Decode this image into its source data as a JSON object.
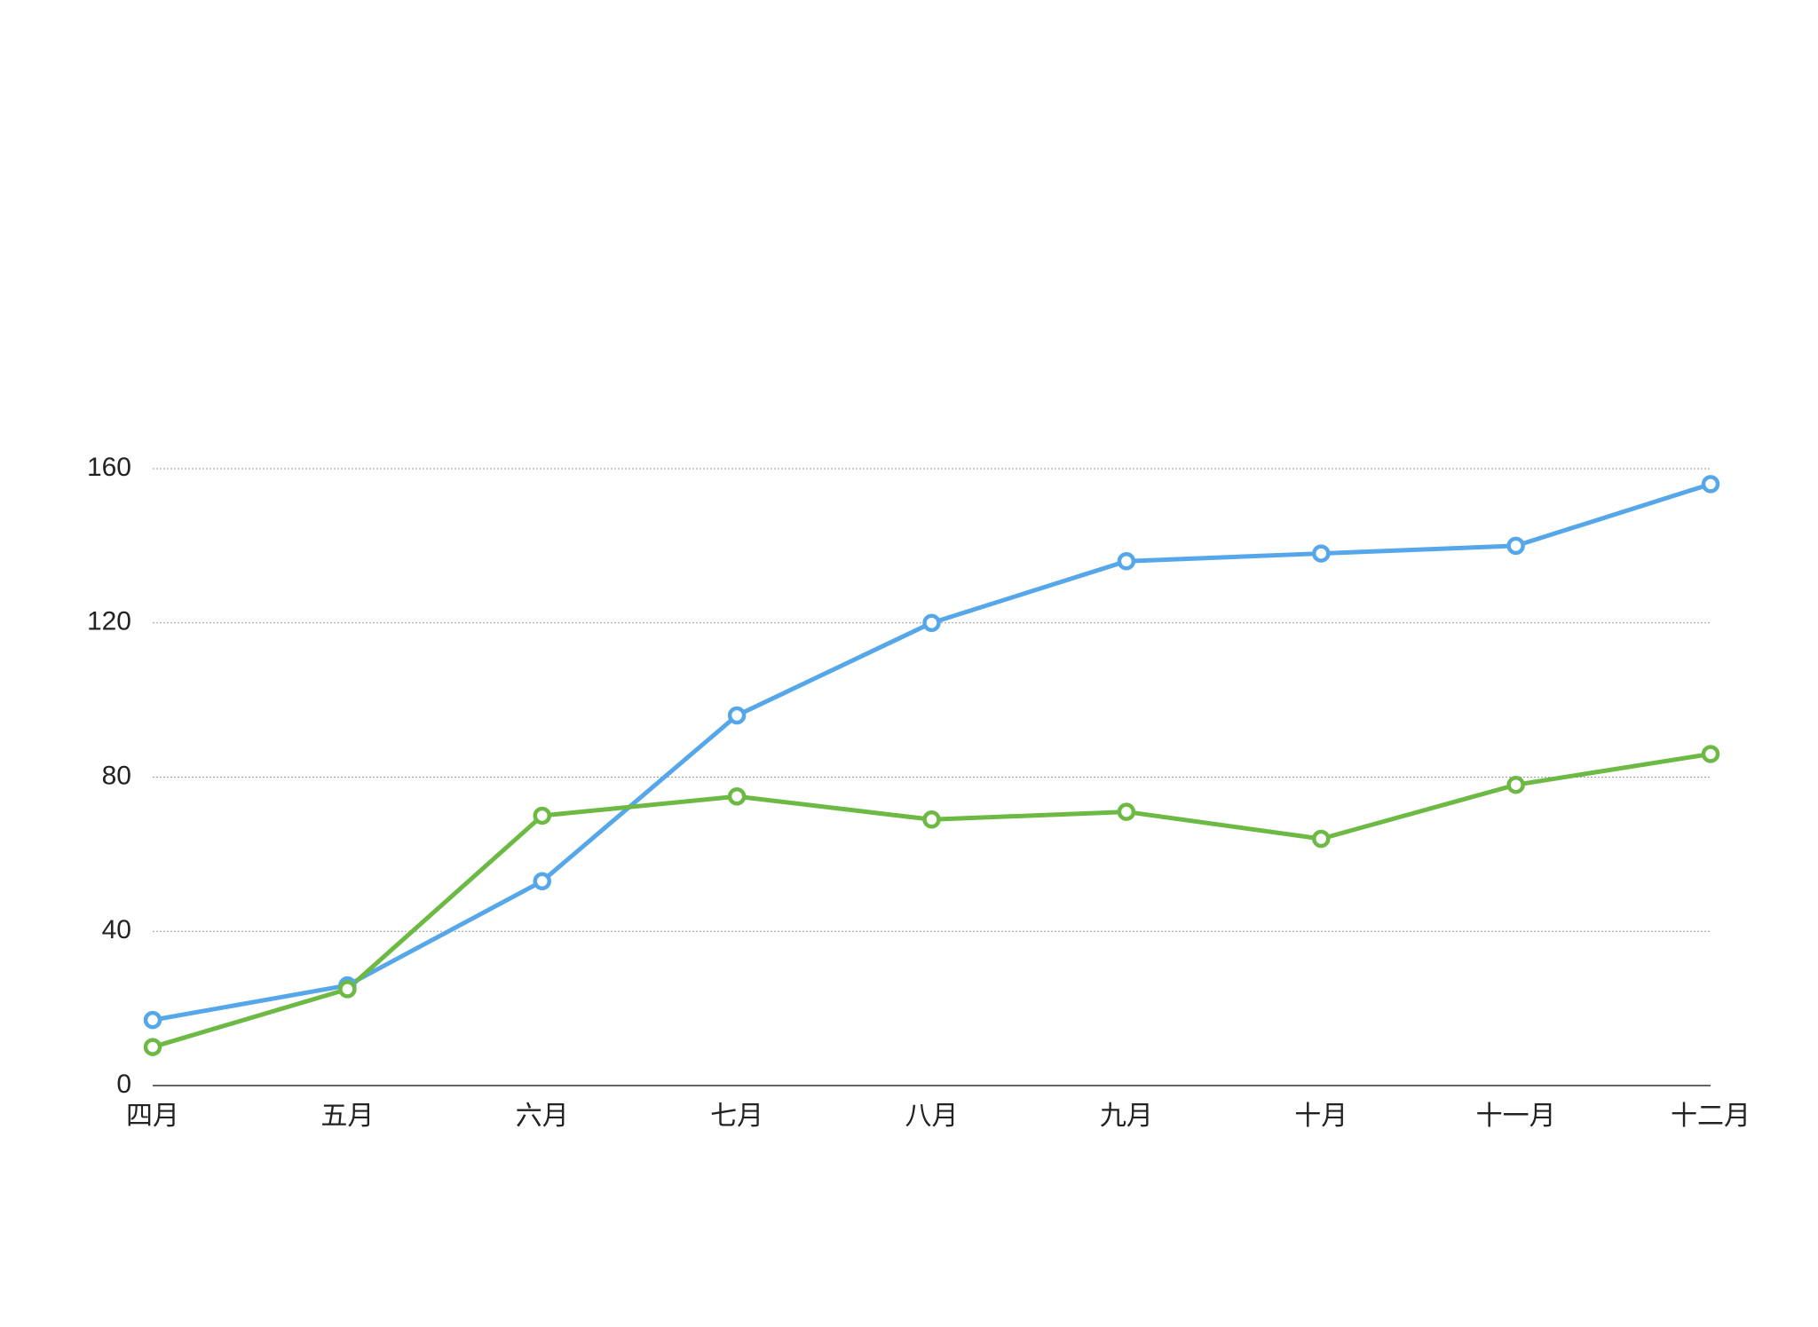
{
  "chart_data": {
    "type": "line",
    "categories": [
      "四月",
      "五月",
      "六月",
      "七月",
      "八月",
      "九月",
      "十月",
      "十一月",
      "十二月"
    ],
    "series": [
      {
        "color": "#55a7ea",
        "values": [
          17,
          26,
          53,
          96,
          120,
          136,
          138,
          140,
          156
        ]
      },
      {
        "color": "#6cb944",
        "values": [
          10,
          25,
          70,
          75,
          69,
          71,
          64,
          78,
          86
        ]
      }
    ],
    "ylim": [
      0,
      160
    ],
    "yticks": [
      0,
      40,
      80,
      120,
      160
    ],
    "grid": true
  }
}
